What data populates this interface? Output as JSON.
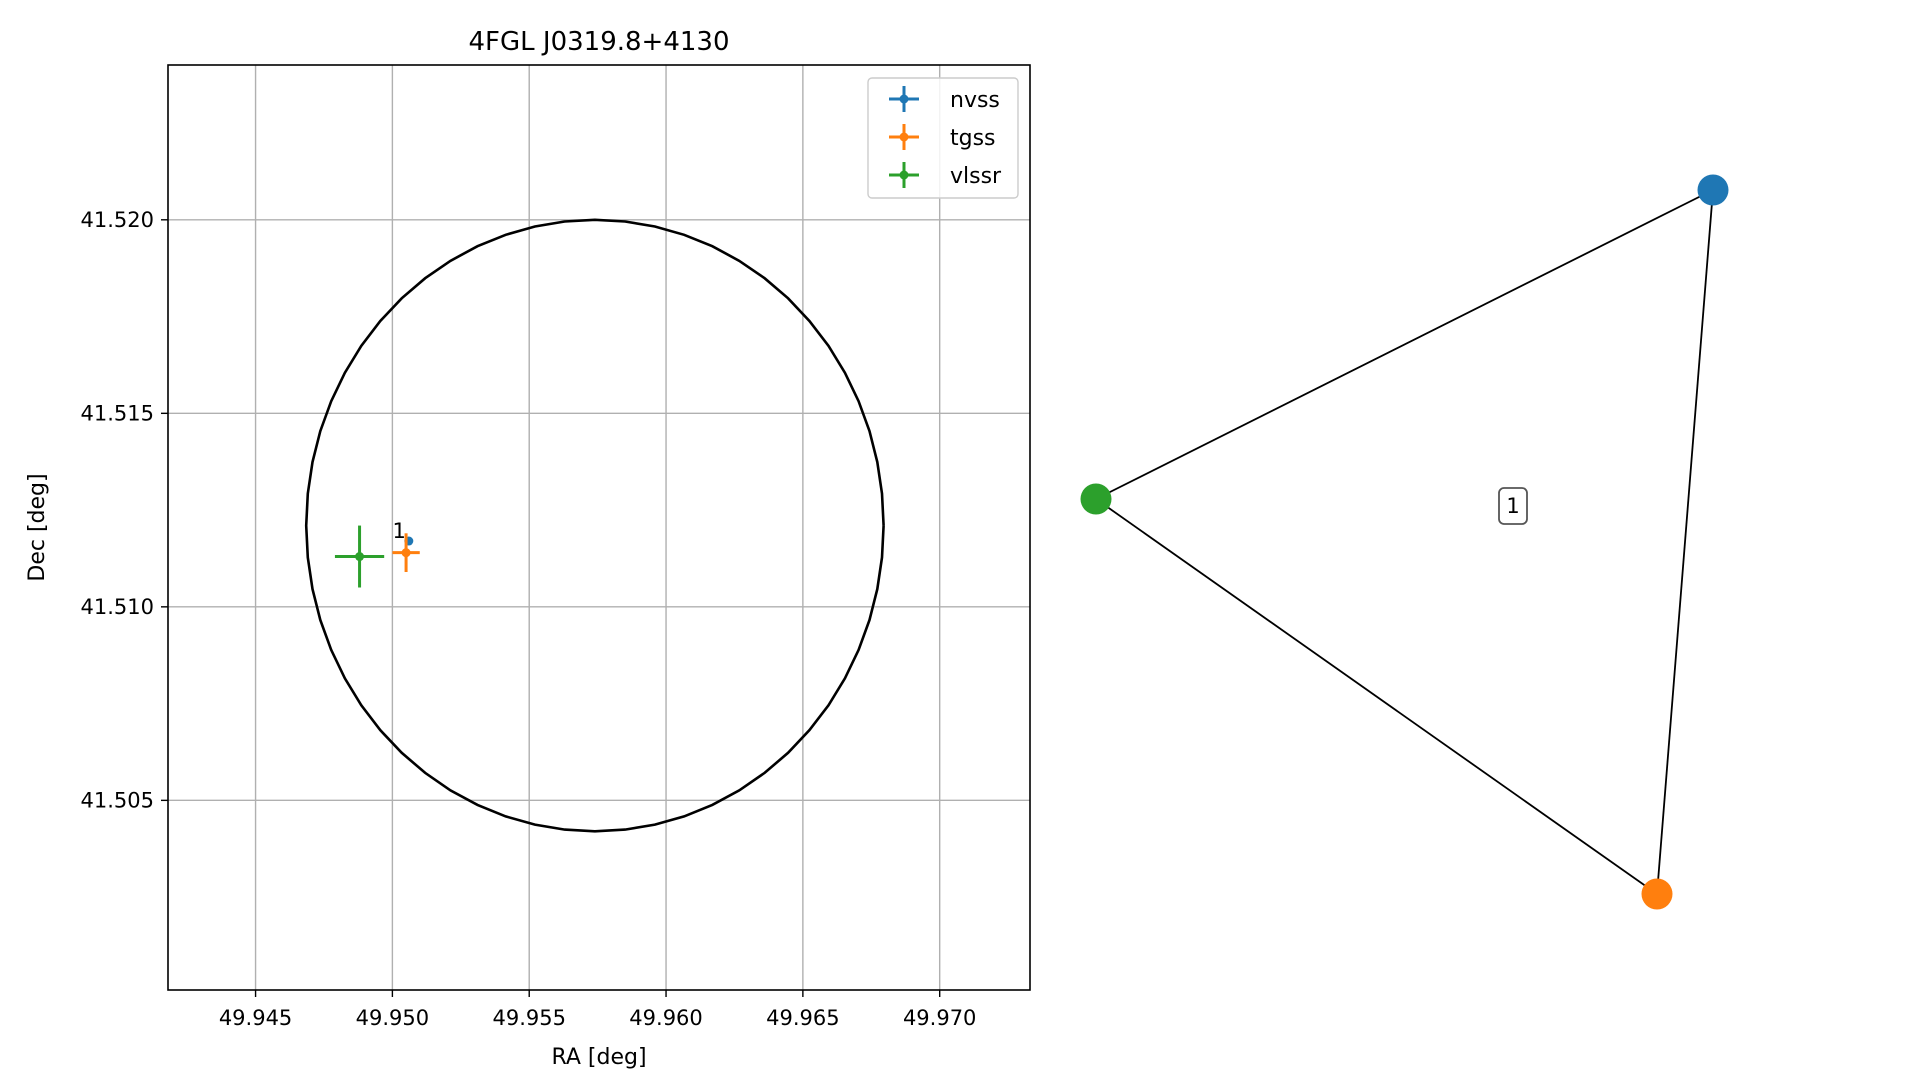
{
  "chart_data": [
    {
      "type": "scatter",
      "title": "4FGL J0319.8+4130",
      "xlabel": "RA [deg]",
      "ylabel": "Dec [deg]",
      "xlim": [
        49.9418,
        49.9733
      ],
      "ylim": [
        41.5001,
        41.524
      ],
      "xticks": [
        49.945,
        49.95,
        49.955,
        49.96,
        49.965,
        49.97
      ],
      "xtick_labels": [
        "49.945",
        "49.950",
        "49.955",
        "49.960",
        "49.965",
        "49.970"
      ],
      "yticks": [
        41.505,
        41.51,
        41.515,
        41.52
      ],
      "ytick_labels": [
        "41.505",
        "41.510",
        "41.515",
        "41.520"
      ],
      "grid": true,
      "legend_position": "top-right",
      "circle": {
        "ra": 49.9574,
        "dec": 41.5121,
        "radius": 0.0079
      },
      "series": [
        {
          "name": "nvss",
          "color": "#1f77b4",
          "ra": 49.9506,
          "dec": 41.5117,
          "ra_err": 0.0001,
          "dec_err": 0.0001
        },
        {
          "name": "tgss",
          "color": "#ff7f0e",
          "ra": 49.9505,
          "dec": 41.5114,
          "ra_err": 0.0005,
          "dec_err": 0.0005
        },
        {
          "name": "vlssr",
          "color": "#2ca02c",
          "ra": 49.9488,
          "dec": 41.5113,
          "ra_err": 0.0009,
          "dec_err": 0.0008
        }
      ],
      "annotations": [
        {
          "text": "1",
          "ra": 49.9506,
          "dec": 41.5117
        }
      ]
    },
    {
      "type": "network",
      "nodes": [
        {
          "id": "nvss",
          "color": "#1f77b4"
        },
        {
          "id": "tgss",
          "color": "#ff7f0e"
        },
        {
          "id": "vlssr",
          "color": "#2ca02c"
        }
      ],
      "edges": [
        [
          "vlssr",
          "nvss"
        ],
        [
          "nvss",
          "tgss"
        ],
        [
          "tgss",
          "vlssr"
        ]
      ],
      "group_label": "1"
    }
  ]
}
